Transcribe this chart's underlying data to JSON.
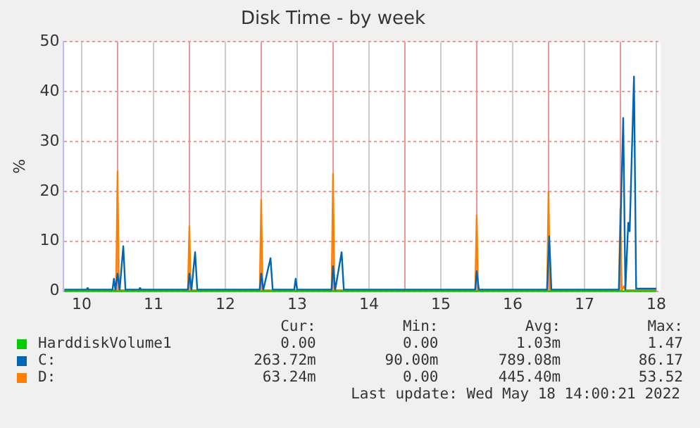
{
  "chart_data": {
    "type": "line",
    "title": "Disk Time - by week",
    "ylabel": "%",
    "xlim": [
      9.75,
      18.06
    ],
    "xticks": [
      10,
      {
        "value": 10.5,
        "label": null
      },
      11,
      {
        "value": 11.5,
        "label": null
      },
      12,
      {
        "value": 12.5,
        "label": null
      },
      13,
      {
        "value": 13.5,
        "label": null
      },
      14,
      {
        "value": 14.5,
        "label": null
      },
      15,
      {
        "value": 15.5,
        "label": null
      },
      16,
      {
        "value": 16.5,
        "label": null
      },
      17,
      {
        "value": 17.5,
        "label": null
      },
      18
    ],
    "ylim": [
      0,
      50
    ],
    "yticks": [
      0,
      10,
      20,
      30,
      40,
      50
    ],
    "grid": true,
    "legend": "bottom",
    "marker": "none",
    "line_style": "solid",
    "series": [
      {
        "name": "HarddiskVolume1",
        "color": "#00cc00",
        "x": [
          9.76,
          18.0
        ],
        "values": [
          0,
          0
        ]
      },
      {
        "name": "C:",
        "color": "#0066b3",
        "x": [
          9.76,
          10.07,
          10.08,
          10.09,
          10.43,
          10.45,
          10.47,
          10.5,
          10.53,
          10.58,
          10.61,
          10.8,
          10.81,
          10.82,
          11.48,
          11.5,
          11.53,
          11.58,
          11.61,
          12.48,
          12.5,
          12.53,
          12.63,
          12.66,
          12.96,
          12.98,
          13.0,
          13.48,
          13.5,
          13.53,
          13.62,
          13.65,
          15.48,
          15.5,
          15.53,
          16.48,
          16.51,
          16.54,
          17.48,
          17.54,
          17.57,
          17.61,
          17.63,
          17.69,
          17.72,
          18.0
        ],
        "values": [
          0.3,
          0.3,
          0.6,
          0.3,
          0.3,
          2.5,
          0.3,
          3.5,
          0.3,
          9,
          0.3,
          0.3,
          0.6,
          0.3,
          0.3,
          3.5,
          0.3,
          7.8,
          0.3,
          0.3,
          3.5,
          0.3,
          6.6,
          0.3,
          0.3,
          2.5,
          0.3,
          0.3,
          5,
          0.3,
          7.8,
          0.3,
          0.3,
          4,
          0.3,
          0.3,
          11,
          0.3,
          0.3,
          34.7,
          0.3,
          13.7,
          12,
          43,
          0.5,
          0.5
        ]
      },
      {
        "name": "D:",
        "color": "#ff8000",
        "x": [
          9.76,
          10.48,
          10.5,
          10.52,
          11.48,
          11.5,
          11.52,
          12.48,
          12.5,
          12.52,
          13.48,
          13.5,
          13.52,
          15.48,
          15.5,
          15.52,
          16.48,
          16.5,
          16.52,
          17.48,
          17.5,
          17.52,
          17.55,
          17.57,
          18.0
        ],
        "values": [
          0.2,
          0.2,
          24,
          0.2,
          0.2,
          13,
          0.2,
          0.2,
          18.3,
          0.2,
          0.2,
          23.5,
          0.2,
          0.2,
          15.2,
          0.2,
          0.2,
          20,
          0.2,
          0.2,
          16.6,
          0.2,
          1,
          0.2,
          0.2
        ]
      }
    ],
    "annotations": [
      "Cur:",
      "Min:",
      "Avg:",
      "Max:",
      "0.00",
      "0.00",
      "1.03m",
      "1.47",
      "263.72m",
      "90.00m",
      "789.08m",
      "86.17",
      "63.24m",
      "0.00",
      "445.40m",
      "53.52",
      "Last update: Wed May 18 14:00:21 2022"
    ]
  }
}
